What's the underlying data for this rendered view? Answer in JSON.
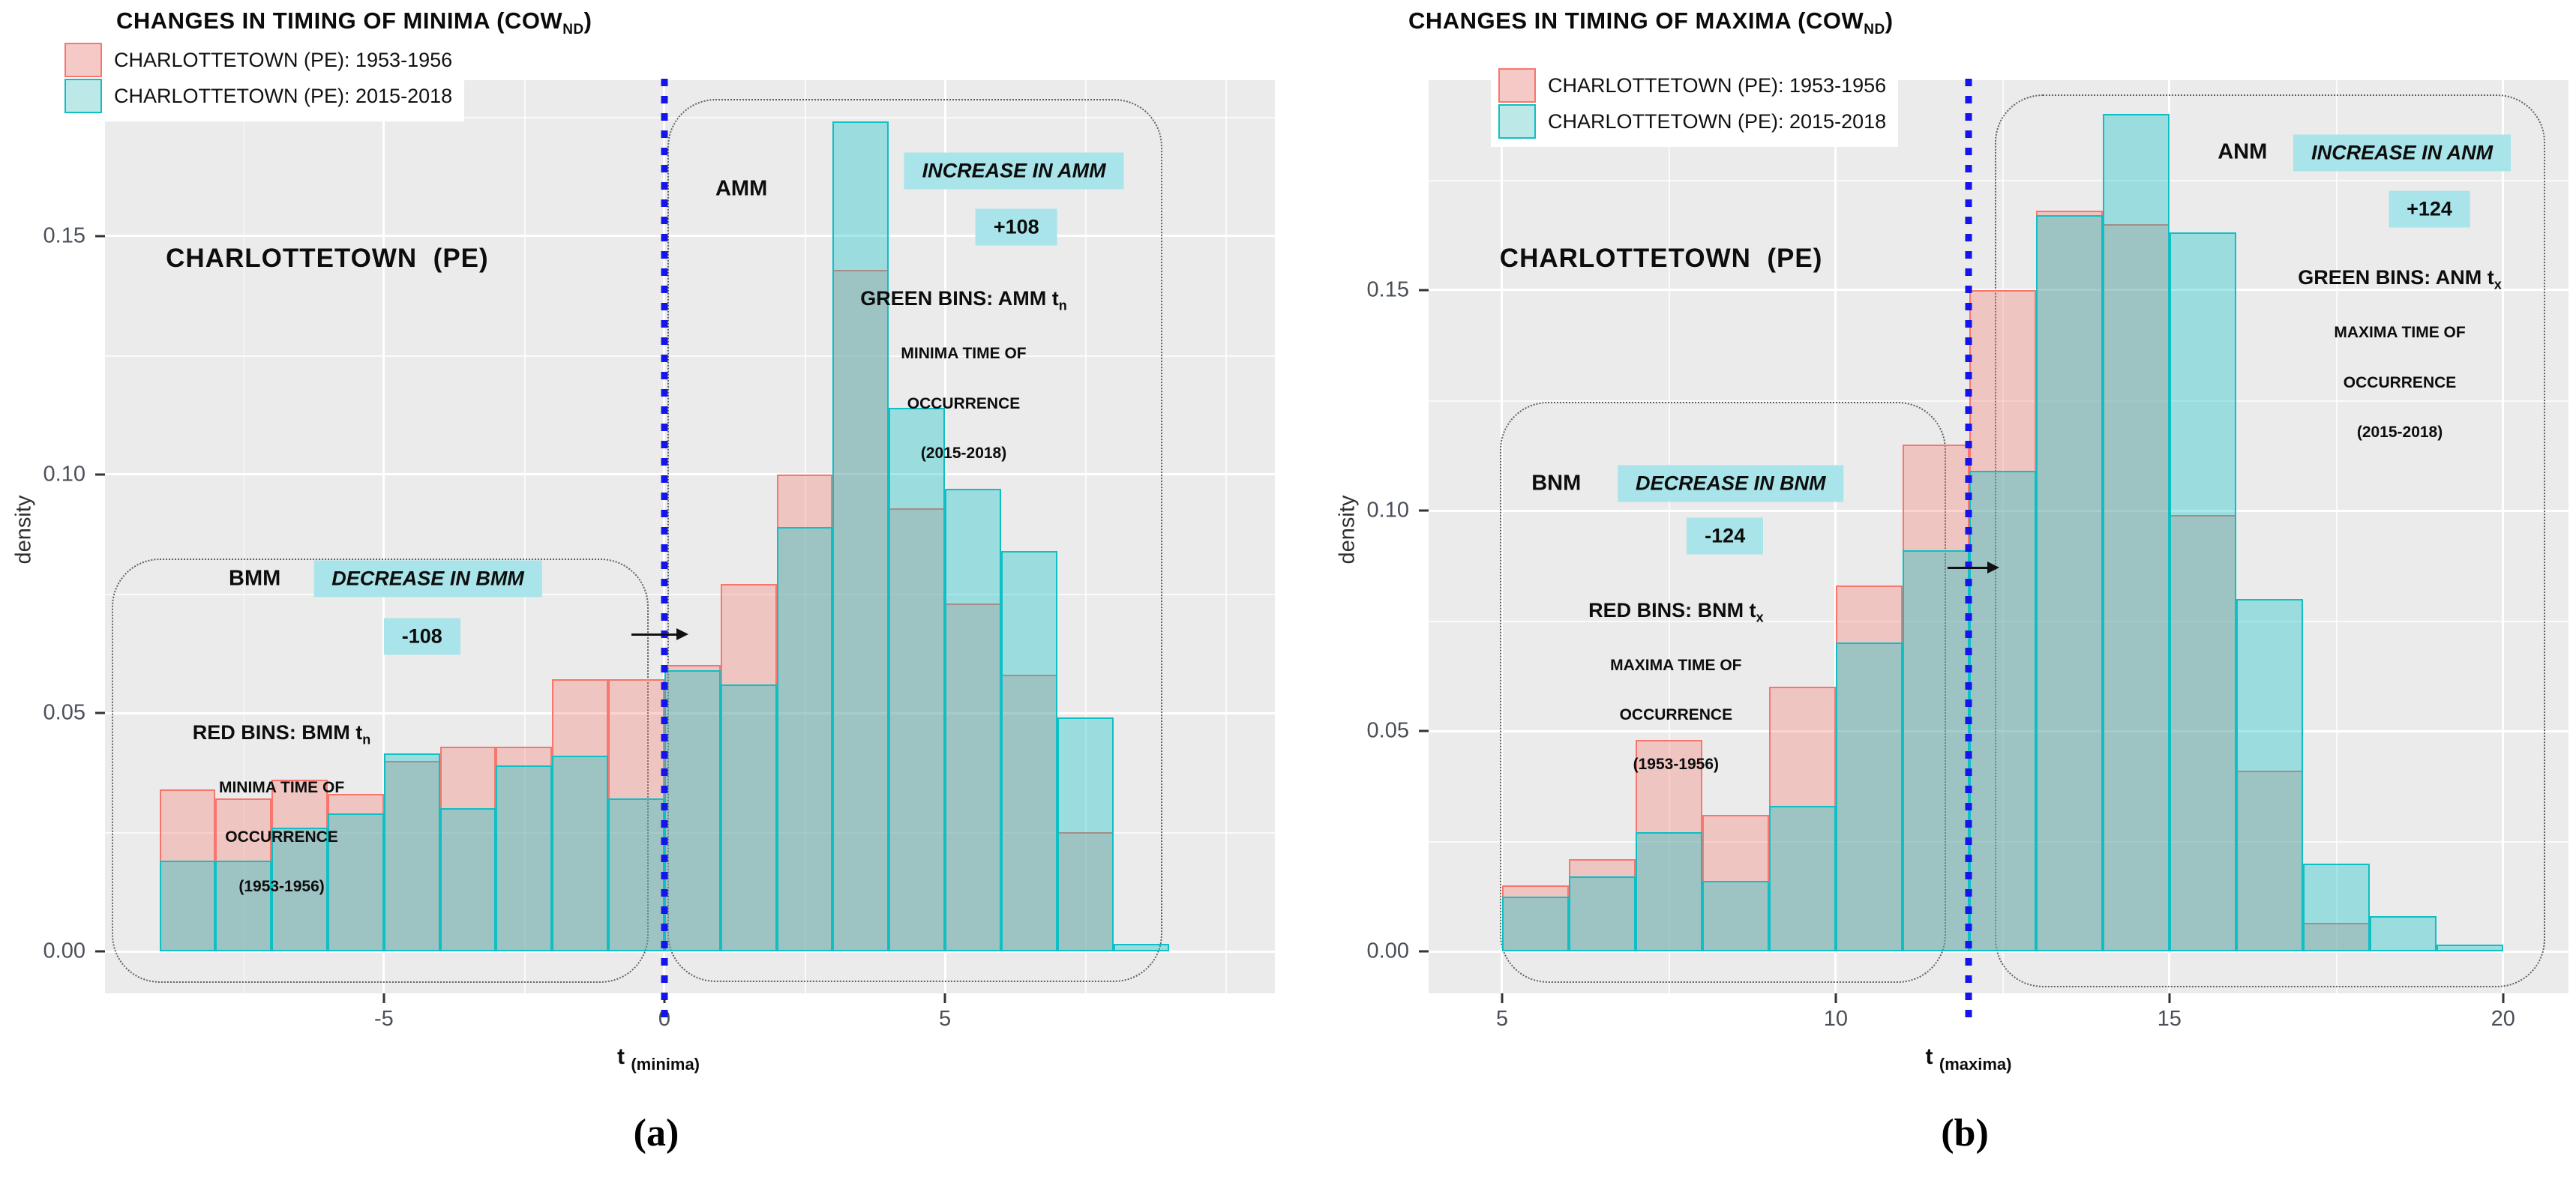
{
  "figure": {
    "captions": [
      "(a)",
      "(b)"
    ]
  },
  "charts": [
    {
      "title_main": "CHANGES IN TIMING OF MINIMA (COW",
      "title_sub": "ND",
      "title_close": ")",
      "panel_label": "CHARLOTTETOWN  (PE)",
      "ylabel": "density",
      "xlabel_main": "t",
      "xlabel_sub": "(minima)",
      "legend": [
        {
          "label": "CHARLOTTETOWN (PE): 1953-1956",
          "swatch": "red-swatch"
        },
        {
          "label": "CHARLOTTETOWN (PE): 2015-2018",
          "swatch": "cyan-swatch"
        }
      ],
      "annotations": {
        "before_label": "BMM",
        "before_change": "DECREASE IN BMM",
        "before_delta": "-108",
        "before_note_line1": "RED BINS: BMM t",
        "before_note_sub": "n",
        "before_note_line2": "MINIMA TIME OF",
        "before_note_line3": "OCCURRENCE",
        "before_note_line4": "(1953-1956)",
        "after_label": "AMM",
        "after_change": "INCREASE IN AMM",
        "after_delta": "+108",
        "after_note_line1": "GREEN BINS: AMM t",
        "after_note_sub": "n",
        "after_note_line2": "MINIMA TIME OF",
        "after_note_line3": "OCCURRENCE",
        "after_note_line4": "(2015-2018)"
      }
    },
    {
      "title_main": "CHANGES IN TIMING OF MAXIMA (COW",
      "title_sub": "ND",
      "title_close": ")",
      "panel_label": "CHARLOTTETOWN  (PE)",
      "ylabel": "density",
      "xlabel_main": "t",
      "xlabel_sub": "(maxima)",
      "legend": [
        {
          "label": "CHARLOTTETOWN (PE): 1953-1956",
          "swatch": "red-swatch"
        },
        {
          "label": "CHARLOTTETOWN (PE): 2015-2018",
          "swatch": "cyan-swatch"
        }
      ],
      "annotations": {
        "before_label": "BNM",
        "before_change": "DECREASE IN BNM",
        "before_delta": "-124",
        "before_note_line1": "RED BINS: BNM t",
        "before_note_sub": "x",
        "before_note_line2": "MAXIMA TIME OF",
        "before_note_line3": "OCCURRENCE",
        "before_note_line4": "(1953-1956)",
        "after_label": "ANM",
        "after_change": "INCREASE IN ANM",
        "after_delta": "+124",
        "after_note_line1": "GREEN BINS: ANM t",
        "after_note_sub": "x",
        "after_note_line2": "MAXIMA TIME OF",
        "after_note_line3": "OCCURRENCE",
        "after_note_line4": "(2015-2018)"
      }
    }
  ],
  "chart_data": [
    {
      "type": "histogram",
      "title": "CHANGES IN TIMING OF MINIMA (COW_ND)",
      "xlabel": "t (minima)",
      "ylabel": "density",
      "bin_start": -9,
      "bin_width": 1,
      "xlim": [
        -9.97,
        10.88
      ],
      "ylim": [
        -0.0088,
        0.1827
      ],
      "ref_line_x": 0,
      "grid": true,
      "legend_position": "top-left",
      "x_ticks": [
        -5,
        0,
        5
      ],
      "x_tick_labels": [
        "-5",
        "0",
        "5"
      ],
      "y_ticks": [
        0,
        0.05,
        0.1,
        0.15
      ],
      "y_tick_labels": [
        "0.00",
        "0.05",
        "0.10",
        "0.15"
      ],
      "x_grid_minor": [
        -7.5,
        -2.5,
        2.5,
        7.5,
        10
      ],
      "y_grid_minor": [
        0.025,
        0.075,
        0.125,
        0.175
      ],
      "series": [
        {
          "name": "CHARLOTTETOWN (PE): 1953-1956",
          "stroke": "#F8766D",
          "fill": "rgba(248,118,109,0.32)",
          "values": [
            0.034,
            0.032,
            0.036,
            0.033,
            0.04,
            0.043,
            0.043,
            0.057,
            0.057,
            0.06,
            0.077,
            0.1,
            0.143,
            0.093,
            0.073,
            0.058,
            0.025,
            0
          ]
        },
        {
          "name": "CHARLOTTETOWN (PE): 2015-2018",
          "stroke": "#0FBFC4",
          "fill": "rgba(0,191,196,0.34)",
          "values": [
            0.019,
            0.019,
            0.026,
            0.029,
            0.0415,
            0.03,
            0.039,
            0.041,
            0.032,
            0.059,
            0.056,
            0.089,
            0.174,
            0.114,
            0.097,
            0.084,
            0.049,
            0.0015
          ]
        }
      ]
    },
    {
      "type": "histogram",
      "title": "CHANGES IN TIMING OF MAXIMA (COW_ND)",
      "xlabel": "t (maxima)",
      "ylabel": "density",
      "bin_start": 5,
      "bin_width": 1,
      "xlim": [
        3.9,
        20.98
      ],
      "ylim": [
        -0.0095,
        0.1976
      ],
      "ref_line_x": 12,
      "grid": true,
      "legend_position": "top-left",
      "x_ticks": [
        5,
        10,
        15,
        20
      ],
      "x_tick_labels": [
        "5",
        "10",
        "15",
        "20"
      ],
      "y_ticks": [
        0,
        0.05,
        0.1,
        0.15
      ],
      "y_tick_labels": [
        "0.00",
        "0.05",
        "0.10",
        "0.15"
      ],
      "x_grid_minor": [
        7.5,
        12.5,
        17.5
      ],
      "y_grid_minor": [
        0.025,
        0.075,
        0.125,
        0.175
      ],
      "series": [
        {
          "name": "CHARLOTTETOWN (PE): 1953-1956",
          "stroke": "#F8766D",
          "fill": "rgba(248,118,109,0.32)",
          "values": [
            0.015,
            0.021,
            0.048,
            0.031,
            0.06,
            0.083,
            0.115,
            0.15,
            0.168,
            0.165,
            0.099,
            0.041,
            0.0065,
            0,
            0
          ]
        },
        {
          "name": "CHARLOTTETOWN (PE): 2015-2018",
          "stroke": "#0FBFC4",
          "fill": "rgba(0,191,196,0.34)",
          "values": [
            0.0125,
            0.017,
            0.027,
            0.016,
            0.033,
            0.07,
            0.091,
            0.109,
            0.167,
            0.19,
            0.163,
            0.08,
            0.02,
            0.008,
            0.0015
          ]
        }
      ]
    }
  ],
  "colors": {
    "panel_bg": "#EBEBEB",
    "red_stroke": "#F8766D",
    "cyan_stroke": "#0FBFC4",
    "annotation_box": "#A8E4E9",
    "ref_line_blue": "#1414EB"
  }
}
